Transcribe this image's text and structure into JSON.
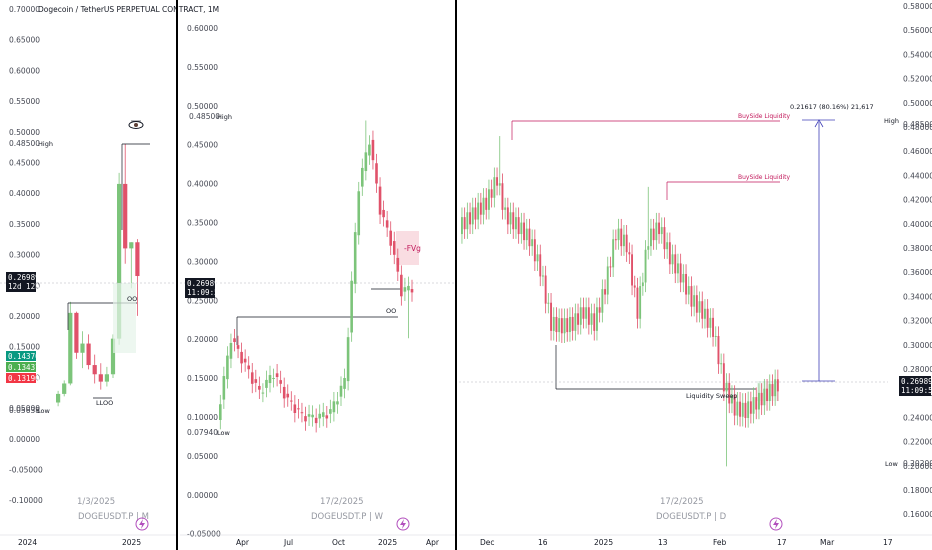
{
  "chart_data": [
    {
      "type": "candlestick",
      "title": "Dogecoin / TetherUS PERPETUAL CONTRACT, 1M",
      "timestamp": "1/3/2025",
      "symbol": "DOGEUSDT.P",
      "interval": "M",
      "y_ticks": [
        "0.70000",
        "0.65000",
        "0.60000",
        "0.55000",
        "0.50000",
        "0.45000",
        "0.40000",
        "0.35000",
        "0.30000",
        "0.25000",
        "0.20000",
        "0.15000",
        "0.10000",
        "0.05000",
        "0.00000",
        "-0.05000",
        "-0.10000"
      ],
      "x_ticks": [
        "2024",
        "2025"
      ],
      "labels": {
        "high": "High",
        "high_value": "0.48500",
        "low": "Low",
        "low_value": "0.05638",
        "oo": "OO",
        "lloo": "LLOO"
      },
      "price_tags": [
        {
          "value": "0.26989",
          "sub": "12d 12h",
          "color": "#131722"
        },
        {
          "value": "0.14370",
          "color": "#089981"
        },
        {
          "value": "0.13437",
          "color": "#4caf50"
        },
        {
          "value": "0.13190",
          "color": "#f23645"
        }
      ],
      "candles": [
        {
          "o": 0.064,
          "h": 0.083,
          "l": 0.058,
          "c": 0.078
        },
        {
          "o": 0.078,
          "h": 0.1,
          "l": 0.074,
          "c": 0.095
        },
        {
          "o": 0.095,
          "h": 0.228,
          "l": 0.092,
          "c": 0.21
        },
        {
          "o": 0.21,
          "h": 0.212,
          "l": 0.135,
          "c": 0.145
        },
        {
          "o": 0.145,
          "h": 0.18,
          "l": 0.12,
          "c": 0.16
        },
        {
          "o": 0.16,
          "h": 0.175,
          "l": 0.118,
          "c": 0.125
        },
        {
          "o": 0.125,
          "h": 0.142,
          "l": 0.095,
          "c": 0.11
        },
        {
          "o": 0.11,
          "h": 0.128,
          "l": 0.085,
          "c": 0.098
        },
        {
          "o": 0.098,
          "h": 0.122,
          "l": 0.09,
          "c": 0.11
        },
        {
          "o": 0.11,
          "h": 0.175,
          "l": 0.104,
          "c": 0.168
        },
        {
          "o": 0.168,
          "h": 0.438,
          "l": 0.158,
          "c": 0.42
        },
        {
          "o": 0.42,
          "h": 0.485,
          "l": 0.29,
          "c": 0.315
        },
        {
          "o": 0.315,
          "h": 0.325,
          "l": 0.25,
          "c": 0.325
        },
        {
          "o": 0.325,
          "h": 0.33,
          "l": 0.205,
          "c": 0.27
        }
      ]
    },
    {
      "type": "candlestick",
      "timestamp": "17/2/2025",
      "symbol": "DOGEUSDT.P",
      "interval": "W",
      "y_ticks": [
        "0.60000",
        "0.55000",
        "0.50000",
        "0.45000",
        "0.40000",
        "0.35000",
        "0.30000",
        "0.25000",
        "0.20000",
        "0.15000",
        "0.10000",
        "0.05000",
        "0.00000",
        "-0.05000"
      ],
      "x_ticks": [
        "Apr",
        "Jul",
        "Oct",
        "2025",
        "Apr"
      ],
      "labels": {
        "high": "High",
        "high_value": "0.48500",
        "low": "Low",
        "low_value": "0.07940",
        "oo": "OO",
        "fvg": "-FVg"
      },
      "price_tags": [
        {
          "value": "0.26989",
          "sub": "11:09:54",
          "color": "#131722"
        }
      ]
    },
    {
      "type": "candlestick",
      "timestamp": "17/2/2025",
      "symbol": "DOGEUSDT.P",
      "interval": "D",
      "y_ticks": [
        "0.58000",
        "0.56000",
        "0.54000",
        "0.52000",
        "0.50000",
        "0.48000",
        "0.46000",
        "0.44000",
        "0.42000",
        "0.40000",
        "0.38000",
        "0.36000",
        "0.34000",
        "0.32000",
        "0.30000",
        "0.28000",
        "0.26000",
        "0.24000",
        "0.22000",
        "0.20000",
        "0.18000",
        "0.16000"
      ],
      "x_ticks": [
        "Dec",
        "16",
        "2025",
        "13",
        "Feb",
        "17",
        "Mar",
        "17"
      ],
      "labels": {
        "high": "High",
        "high_value": "0.48500",
        "low": "Low",
        "low_value": "0.20200",
        "buyside_1": "BuySide Liquidity",
        "buyside_2": "BuySide Liquidity",
        "sweep": "Liquidity Sweep",
        "measure": "0.21617 (80.16%) 21,617"
      },
      "price_tags": [
        {
          "value": "0.26989",
          "sub": "11:09:54",
          "color": "#131722"
        }
      ]
    }
  ],
  "colors": {
    "up": "#7cc47a",
    "down": "#e0526a",
    "grid": "#f0f3fa",
    "divider": "#000000",
    "fvg": "#f8d7dd",
    "measure": "#3f3fb6",
    "buyside": "#c2185b",
    "sweep_zone": "#e6f4ea"
  }
}
